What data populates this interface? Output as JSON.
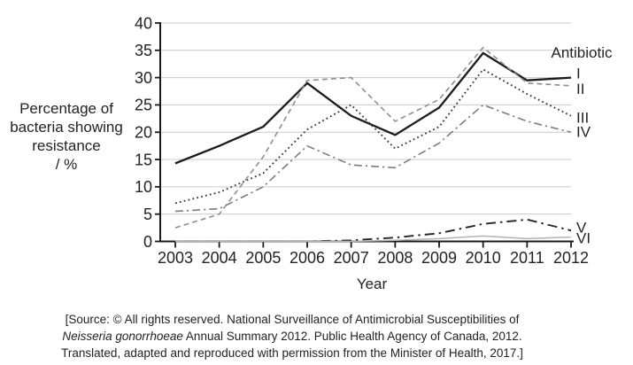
{
  "chart_data": {
    "type": "line",
    "title": "",
    "xlabel": "Year",
    "ylabel": "Percentage of bacteria showing resistance / %",
    "ylabel_lines": [
      "Percentage of",
      "bacteria showing",
      "resistance",
      "/ %"
    ],
    "legend_title": "Antibiotic",
    "legend_position": "right of line ends",
    "grid": "horizontal gridlines at every y tick",
    "ylim": [
      0,
      40
    ],
    "y_ticks": [
      0,
      5,
      10,
      15,
      20,
      25,
      30,
      35,
      40
    ],
    "x_categories": [
      "2003",
      "2004",
      "2005",
      "2006",
      "2007",
      "2008",
      "2009",
      "2010",
      "2011",
      "2012"
    ],
    "colors": {
      "axis": "#1a1a1a",
      "grid": "#c9c9c9",
      "tick_text": "#232323"
    },
    "series": [
      {
        "name": "I",
        "pattern": "solid",
        "color": "#1c1c1c",
        "values": [
          14.3,
          17.5,
          21,
          29,
          23,
          19.5,
          24.5,
          34.5,
          29.5,
          30
        ]
      },
      {
        "name": "II",
        "pattern": "dashed",
        "color": "#8f8f8f",
        "values": [
          2.5,
          5,
          15.5,
          29.5,
          30,
          22,
          26,
          35.5,
          29,
          28.5
        ]
      },
      {
        "name": "III",
        "pattern": "dotted",
        "color": "#3d3d3d",
        "values": [
          7,
          9,
          12.5,
          20.5,
          25,
          17,
          21,
          31.5,
          27,
          23
        ]
      },
      {
        "name": "IV",
        "pattern": "dash-dot",
        "color": "#7d7d7d",
        "values": [
          5.5,
          6,
          10,
          17.5,
          14,
          13.5,
          18,
          25,
          22,
          20
        ]
      },
      {
        "name": "V",
        "pattern": "dash-dot-long",
        "color": "#262626",
        "values": [
          0,
          0,
          0,
          0,
          0.2,
          0.7,
          1.5,
          3.2,
          4,
          2
        ]
      },
      {
        "name": "VI",
        "pattern": "solid",
        "color": "#b3b3b3",
        "values": [
          0,
          0,
          0,
          0,
          0,
          0.2,
          0.5,
          1,
          0.5,
          0.8
        ]
      }
    ]
  },
  "source": {
    "line1": "[Source: © All rights reserved. National Surveillance of Antimicrobial Susceptibilities of",
    "line2_italic": "Neisseria gonorrhoeae",
    "line2_rest": " Annual Summary 2012. Public Health Agency of Canada, 2012.",
    "line3": "Translated, adapted and reproduced with permission from the Minister of Health, 2017.]"
  }
}
